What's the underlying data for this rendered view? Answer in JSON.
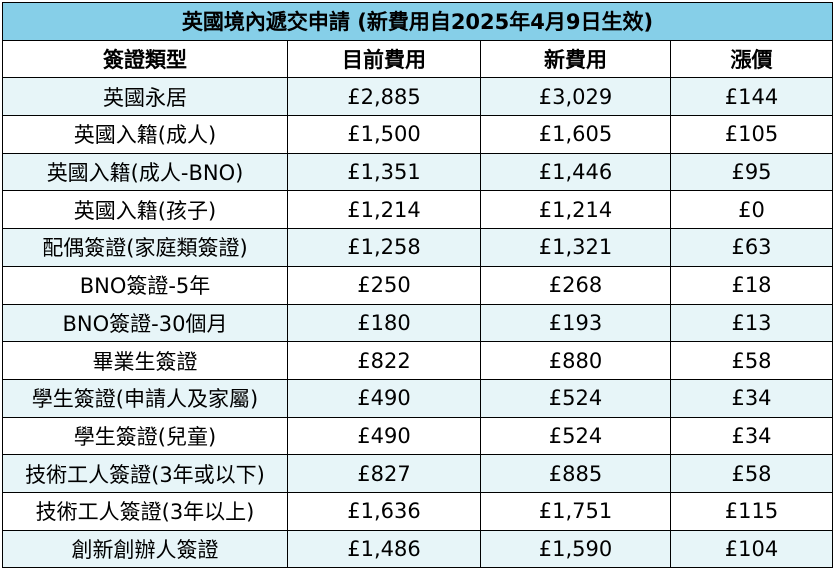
{
  "table": {
    "title": "英國境內遞交申請 (新費用自2025年4月9日生效)",
    "headers": [
      "簽證類型",
      "目前費用",
      "新費用",
      "漲價"
    ],
    "rows": [
      [
        "英國永居",
        "£2,885",
        "£3,029",
        "£144"
      ],
      [
        "英國入籍(成人)",
        "£1,500",
        "£1,605",
        "£105"
      ],
      [
        "英國入籍(成人-BNO)",
        "£1,351",
        "£1,446",
        "£95"
      ],
      [
        "英國入籍(孩子)",
        "£1,214",
        "£1,214",
        "£0"
      ],
      [
        "配偶簽證(家庭類簽證)",
        "£1,258",
        "£1,321",
        "£63"
      ],
      [
        "BNO簽證-5年",
        "£250",
        "£268",
        "£18"
      ],
      [
        "BNO簽證-30個月",
        "£180",
        "£193",
        "£13"
      ],
      [
        "畢業生簽證",
        "£822",
        "£880",
        "£58"
      ],
      [
        "學生簽證(申請人及家屬)",
        "£490",
        "£524",
        "£34"
      ],
      [
        "學生簽證(兒童)",
        "£490",
        "£524",
        "£34"
      ],
      [
        "技術工人簽證(3年或以下)",
        "£827",
        "£885",
        "£58"
      ],
      [
        "技術工人簽證(3年以上)",
        "£1,636",
        "£1,751",
        "£115"
      ],
      [
        "創新創辦人簽證",
        "£1,486",
        "£1,590",
        "£104"
      ]
    ],
    "colors": {
      "title_bg": "#86cfe8",
      "stripe_bg": "#e7f5f8",
      "border": "#000000"
    }
  }
}
